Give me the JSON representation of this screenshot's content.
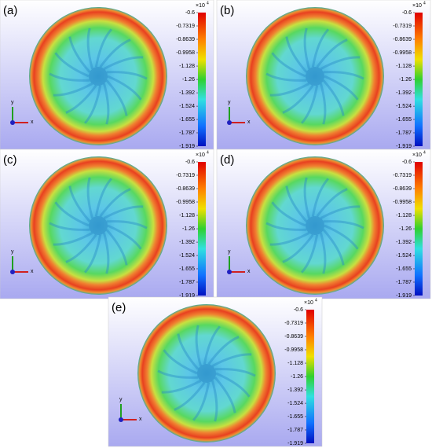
{
  "panels": [
    {
      "label": "(a)"
    },
    {
      "label": "(b)"
    },
    {
      "label": "(c)"
    },
    {
      "label": "(d)"
    },
    {
      "label": "(e)"
    }
  ],
  "colorbar": {
    "ticks": [
      -0.6,
      -0.7319,
      -0.8639,
      -0.9958,
      -1.128,
      -1.26,
      -1.392,
      -1.524,
      -1.655,
      -1.787,
      -1.919
    ],
    "multiplier": "×10",
    "multiplier_exponent": "4"
  },
  "axes": {
    "x": "x",
    "y": "y"
  }
}
